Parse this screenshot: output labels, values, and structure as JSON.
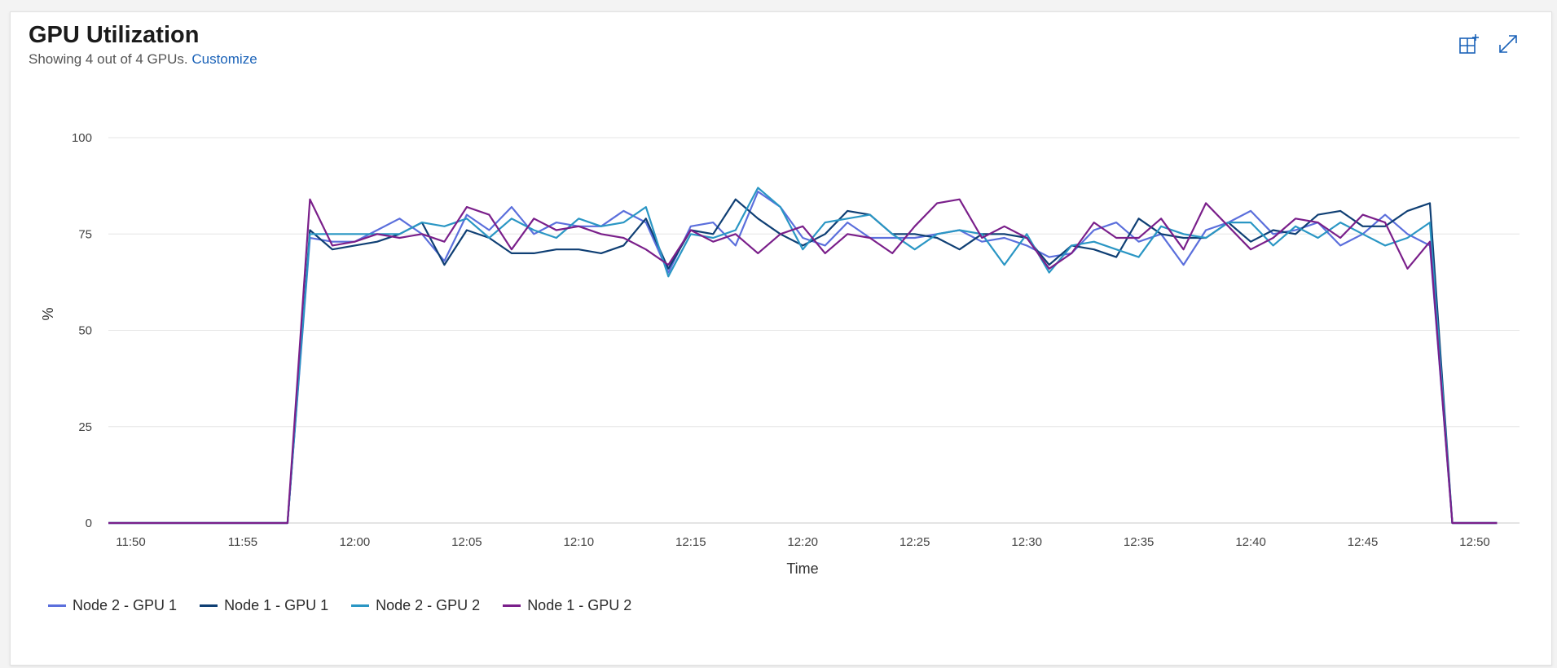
{
  "header": {
    "title": "GPU Utilization",
    "subtitle_text": "Showing 4 out of 4 GPUs.",
    "customize_link": "Customize",
    "pin_icon": "pin-to-dashboard-icon",
    "expand_icon": "expand-icon"
  },
  "colors": {
    "accent": "#1a62b8",
    "grid": "#e6e6e6",
    "axis": "#c8c8c8"
  },
  "chart_data": {
    "type": "line",
    "xlabel": "Time",
    "ylabel": "%",
    "ylim": [
      0,
      100
    ],
    "yticks": [
      0,
      25,
      50,
      75,
      100
    ],
    "xlim": [
      "11:49",
      "12:52"
    ],
    "xticks": [
      "11:50",
      "11:55",
      "12:00",
      "12:05",
      "12:10",
      "12:15",
      "12:20",
      "12:25",
      "12:30",
      "12:35",
      "12:40",
      "12:45",
      "12:50"
    ],
    "grid": true,
    "legend_position": "bottom-left",
    "x": [
      "11:49",
      "11:57",
      "11:58",
      "11:59",
      "12:00",
      "12:01",
      "12:02",
      "12:03",
      "12:04",
      "12:05",
      "12:06",
      "12:07",
      "12:08",
      "12:09",
      "12:10",
      "12:11",
      "12:12",
      "12:13",
      "12:14",
      "12:15",
      "12:16",
      "12:17",
      "12:18",
      "12:19",
      "12:20",
      "12:21",
      "12:22",
      "12:23",
      "12:24",
      "12:25",
      "12:26",
      "12:27",
      "12:28",
      "12:29",
      "12:30",
      "12:31",
      "12:32",
      "12:33",
      "12:34",
      "12:35",
      "12:36",
      "12:37",
      "12:38",
      "12:39",
      "12:40",
      "12:41",
      "12:42",
      "12:43",
      "12:44",
      "12:45",
      "12:46",
      "12:47",
      "12:48",
      "12:49",
      "12:51"
    ],
    "series": [
      {
        "name": "Node 2 - GPU 1",
        "color": "#5b6fdc",
        "values": [
          0,
          0,
          74,
          73,
          73,
          76,
          79,
          75,
          68,
          80,
          76,
          82,
          75,
          78,
          77,
          77,
          81,
          78,
          65,
          77,
          78,
          72,
          86,
          82,
          74,
          72,
          78,
          74,
          74,
          74,
          75,
          76,
          73,
          74,
          72,
          69,
          70,
          76,
          78,
          73,
          75,
          67,
          76,
          78,
          81,
          75,
          76,
          78,
          72,
          75,
          80,
          75,
          72,
          0,
          0
        ]
      },
      {
        "name": "Node 1 - GPU 1",
        "color": "#0f3f74",
        "values": [
          0,
          0,
          76,
          71,
          72,
          73,
          75,
          78,
          67,
          76,
          74,
          70,
          70,
          71,
          71,
          70,
          72,
          79,
          66,
          76,
          75,
          84,
          79,
          75,
          72,
          75,
          81,
          80,
          75,
          75,
          74,
          71,
          75,
          75,
          74,
          67,
          72,
          71,
          69,
          79,
          75,
          74,
          74,
          78,
          73,
          76,
          75,
          80,
          81,
          77,
          77,
          81,
          83,
          0,
          0
        ]
      },
      {
        "name": "Node 2 - GPU 2",
        "color": "#2a96c4",
        "values": [
          0,
          0,
          75,
          75,
          75,
          75,
          75,
          78,
          77,
          79,
          74,
          79,
          76,
          74,
          79,
          77,
          78,
          82,
          64,
          75,
          74,
          76,
          87,
          82,
          71,
          78,
          79,
          80,
          75,
          71,
          75,
          76,
          75,
          67,
          75,
          65,
          72,
          73,
          71,
          69,
          77,
          75,
          74,
          78,
          78,
          72,
          77,
          74,
          78,
          75,
          72,
          74,
          78,
          0,
          0
        ]
      },
      {
        "name": "Node 1 - GPU 2",
        "color": "#7a1f8a",
        "values": [
          0,
          0,
          84,
          72,
          73,
          75,
          74,
          75,
          73,
          82,
          80,
          71,
          79,
          76,
          77,
          75,
          74,
          71,
          67,
          76,
          73,
          75,
          70,
          75,
          77,
          70,
          75,
          74,
          70,
          77,
          83,
          84,
          74,
          77,
          74,
          66,
          70,
          78,
          74,
          74,
          79,
          71,
          83,
          77,
          71,
          74,
          79,
          78,
          74,
          80,
          78,
          66,
          73,
          0,
          0
        ]
      }
    ]
  }
}
